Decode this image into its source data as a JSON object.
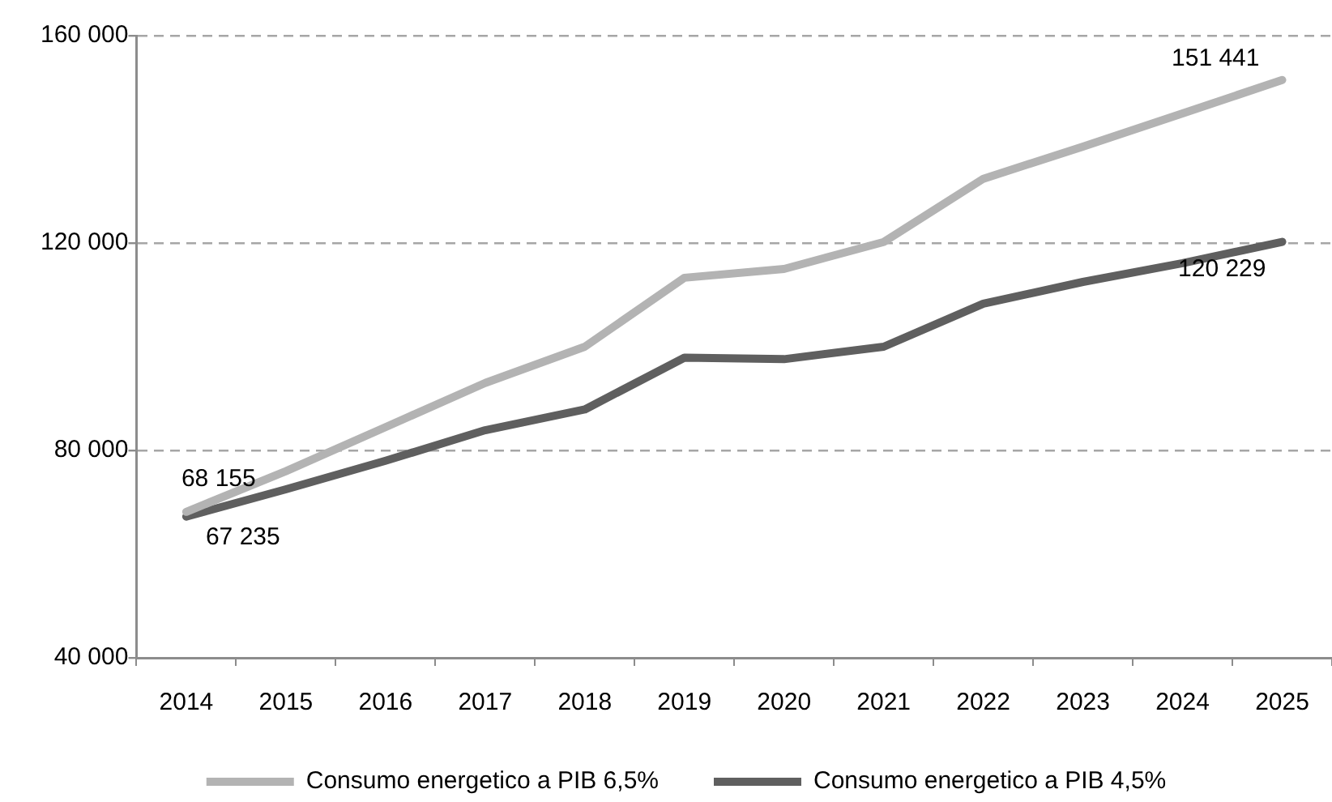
{
  "chart_data": {
    "type": "line",
    "categories": [
      "2014",
      "2015",
      "2016",
      "2017",
      "2018",
      "2019",
      "2020",
      "2021",
      "2022",
      "2023",
      "2024",
      "2025"
    ],
    "series": [
      {
        "name": "Consumo energetico a PIB 6,5%",
        "color": "#b3b3b3",
        "values": [
          68155,
          76000,
          84500,
          93000,
          100000,
          113300,
          115000,
          120200,
          132400,
          138600,
          145000,
          151441
        ],
        "value_labels": [
          "68 155",
          null,
          null,
          null,
          null,
          null,
          null,
          null,
          null,
          null,
          null,
          "151 441"
        ]
      },
      {
        "name": "Consumo energetico a PIB 4,5%",
        "color": "#5f5f5f",
        "values": [
          67235,
          72500,
          78000,
          83900,
          87900,
          97900,
          97600,
          100000,
          108300,
          112500,
          116100,
          120229
        ],
        "value_labels": [
          "67 235",
          null,
          null,
          null,
          null,
          null,
          null,
          null,
          null,
          null,
          null,
          "120 229"
        ]
      }
    ],
    "ylim": [
      40000,
      160000
    ],
    "yticks": [
      {
        "value": 40000,
        "label": "40 000"
      },
      {
        "value": 80000,
        "label": "80 000"
      },
      {
        "value": 120000,
        "label": "120 000"
      },
      {
        "value": 160000,
        "label": "160 000"
      }
    ],
    "grid": "y",
    "legend": "bottom",
    "marker": "none",
    "line_style": "solid"
  }
}
